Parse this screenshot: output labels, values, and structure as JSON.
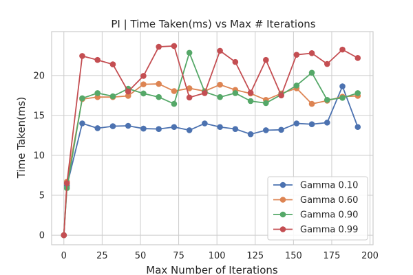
{
  "chart_data": {
    "type": "line",
    "title": "PI | Time Taken(ms) vs Max # Iterations",
    "xlabel": "Max Number of Iterations",
    "ylabel": "Time Taken(ms)",
    "xlim": [
      -8,
      202
    ],
    "ylim": [
      -1.2,
      25.5
    ],
    "xticks": [
      0,
      25,
      50,
      75,
      100,
      125,
      150,
      175,
      200
    ],
    "yticks": [
      0,
      5,
      10,
      15,
      20
    ],
    "grid": true,
    "legend_position": "lower-right",
    "x": [
      0,
      2,
      12,
      22,
      32,
      42,
      52,
      62,
      72,
      82,
      92,
      102,
      112,
      122,
      132,
      142,
      152,
      162,
      172,
      182,
      192
    ],
    "series": [
      {
        "name": "Gamma 0.10",
        "color": "#4c72b0",
        "values": [
          0.0,
          6.2,
          14.0,
          13.4,
          13.65,
          13.7,
          13.35,
          13.3,
          13.55,
          13.15,
          14.0,
          13.55,
          13.3,
          12.65,
          13.15,
          13.2,
          14.0,
          13.9,
          14.1,
          18.65,
          13.55
        ]
      },
      {
        "name": "Gamma 0.60",
        "color": "#dd8452",
        "values": [
          0.0,
          6.7,
          17.05,
          17.3,
          17.3,
          17.45,
          18.9,
          18.95,
          18.05,
          18.4,
          18.05,
          18.85,
          18.2,
          17.75,
          16.95,
          17.75,
          18.4,
          16.45,
          16.85,
          17.35,
          17.45
        ]
      },
      {
        "name": "Gamma 0.90",
        "color": "#55a868",
        "values": [
          0.0,
          5.9,
          17.15,
          17.8,
          17.4,
          18.35,
          17.75,
          17.3,
          16.45,
          22.85,
          17.95,
          17.3,
          17.8,
          16.8,
          16.55,
          17.6,
          18.75,
          20.35,
          16.95,
          17.2,
          17.8
        ]
      },
      {
        "name": "Gamma 0.99",
        "color": "#c44e52",
        "values": [
          0.0,
          6.5,
          22.45,
          21.95,
          21.4,
          18.0,
          19.95,
          23.6,
          23.7,
          17.25,
          17.8,
          23.1,
          21.7,
          17.85,
          21.95,
          17.5,
          22.6,
          22.8,
          21.45,
          23.25,
          22.2
        ]
      }
    ]
  }
}
